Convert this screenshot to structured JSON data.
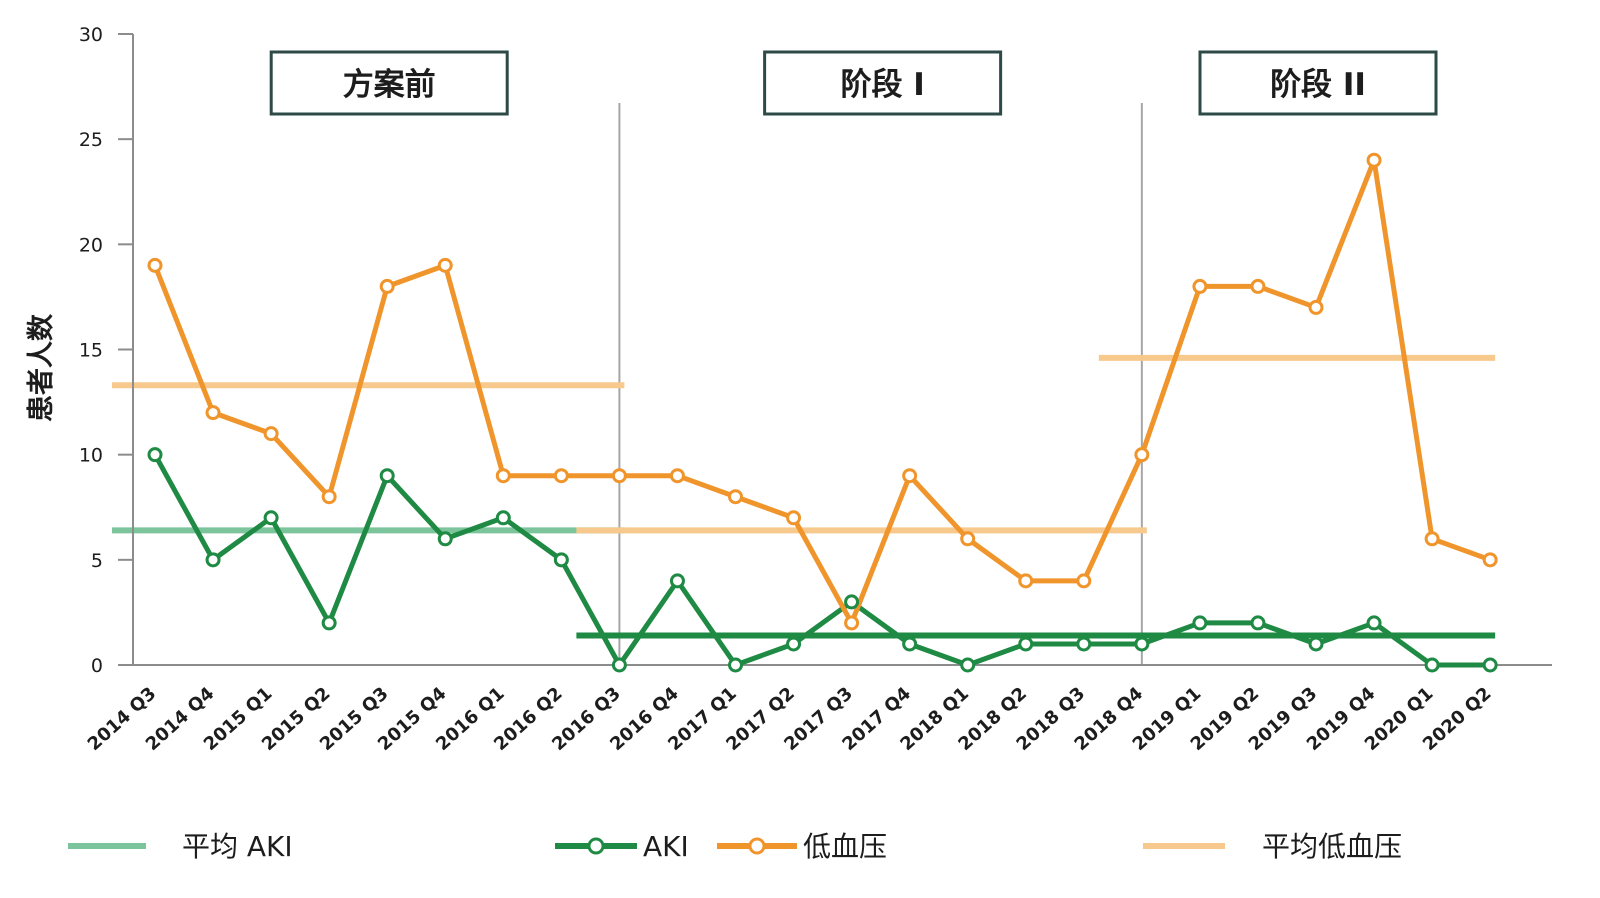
{
  "chart_data": {
    "type": "line",
    "ylabel": "患者人数",
    "xlabel": "",
    "ylim": [
      0,
      30
    ],
    "y_ticks": [
      0,
      5,
      10,
      15,
      20,
      25,
      30
    ],
    "categories": [
      "2014 Q3",
      "2014 Q4",
      "2015 Q1",
      "2015 Q2",
      "2015 Q3",
      "2015 Q4",
      "2016 Q1",
      "2016 Q2",
      "2016 Q3",
      "2016 Q4",
      "2017 Q1",
      "2017 Q2",
      "2017 Q3",
      "2017 Q4",
      "2018 Q1",
      "2018 Q2",
      "2018 Q3",
      "2018 Q4",
      "2019 Q1",
      "2019 Q2",
      "2019 Q3",
      "2019 Q4",
      "2020 Q1",
      "2020 Q2"
    ],
    "series": [
      {
        "name": "AKI",
        "color": "#1e8a43",
        "values": [
          10,
          5,
          7,
          2,
          9,
          6,
          7,
          5,
          0,
          4,
          0,
          1,
          3,
          1,
          0,
          1,
          1,
          1,
          2,
          2,
          1,
          2,
          0,
          0
        ]
      },
      {
        "name": "低血压",
        "color": "#f0952c",
        "values": [
          19,
          12,
          11,
          8,
          18,
          19,
          9,
          9,
          9,
          9,
          8,
          7,
          2,
          9,
          6,
          4,
          4,
          10,
          18,
          18,
          17,
          24,
          6,
          5
        ]
      }
    ],
    "averages": [
      {
        "name": "平均 AKI",
        "color": "#7cc49b",
        "segments": [
          {
            "from": "2014 Q3",
            "to": "2016 Q3",
            "value": 6.4
          }
        ]
      },
      {
        "name": "平均 AKI",
        "color": "#1e8a43",
        "segments": [
          {
            "from": "2016 Q3",
            "to": "2020 Q2",
            "value": 1.4
          }
        ]
      },
      {
        "name": "平均低血压",
        "color": "#f7c98d",
        "segments": [
          {
            "from": "2014 Q3",
            "to": "2016 Q3",
            "value": 13.3
          },
          {
            "from": "2016 Q3",
            "to": "2018 Q4",
            "value": 6.4
          },
          {
            "from": "2018 Q4",
            "to": "2020 Q2",
            "value": 14.6
          }
        ]
      }
    ],
    "phases": [
      {
        "label": "方案前",
        "start": "2014 Q3",
        "end": "2016 Q3"
      },
      {
        "label": "阶段 I",
        "start": "2016 Q3",
        "end": "2018 Q4"
      },
      {
        "label": "阶段 II",
        "start": "2018 Q4",
        "end": "2020 Q2"
      }
    ],
    "phase_dividers": [
      "2016 Q3",
      "2018 Q4"
    ],
    "legend": [
      {
        "label": "平均 AKI",
        "style": "line",
        "color": "#7cc49b"
      },
      {
        "label": "AKI",
        "style": "line-marker",
        "color": "#1e8a43"
      },
      {
        "label": "低血压",
        "style": "line-marker",
        "color": "#f0952c"
      },
      {
        "label": "平均低血压",
        "style": "line",
        "color": "#f7c98d"
      }
    ],
    "legend_placement": "bottom",
    "grid": false
  }
}
